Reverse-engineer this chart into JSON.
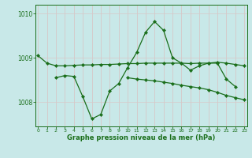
{
  "x": [
    0,
    1,
    2,
    3,
    4,
    5,
    6,
    7,
    8,
    9,
    10,
    11,
    12,
    13,
    14,
    15,
    16,
    17,
    18,
    19,
    20,
    21,
    22,
    23
  ],
  "line1": [
    1009.05,
    1008.88,
    1008.82,
    1008.82,
    1008.83,
    1008.84,
    1008.84,
    1008.85,
    1008.85,
    1008.86,
    1008.87,
    1008.87,
    1008.88,
    1008.88,
    1008.88,
    1008.88,
    1008.88,
    1008.87,
    1008.88,
    1008.88,
    1008.9,
    1008.88,
    1008.85,
    1008.82
  ],
  "line2": [
    null,
    null,
    1008.55,
    1008.6,
    1008.58,
    1008.12,
    1007.62,
    1007.72,
    1008.25,
    1008.42,
    1008.78,
    1009.12,
    1009.58,
    1009.82,
    1009.62,
    1009.0,
    1008.88,
    1008.72,
    1008.82,
    1008.88,
    1008.88,
    1008.52,
    1008.35,
    null
  ],
  "line3": [
    null,
    null,
    null,
    null,
    null,
    null,
    null,
    null,
    null,
    null,
    1008.55,
    1008.52,
    1008.5,
    1008.48,
    1008.45,
    1008.42,
    1008.38,
    1008.35,
    1008.32,
    1008.28,
    1008.22,
    1008.15,
    1008.1,
    1008.05
  ],
  "ylim": [
    1007.45,
    1010.2
  ],
  "xlim": [
    -0.3,
    23.3
  ],
  "yticks": [
    1008,
    1009,
    1010
  ],
  "xticks": [
    0,
    1,
    2,
    3,
    4,
    5,
    6,
    7,
    8,
    9,
    10,
    11,
    12,
    13,
    14,
    15,
    16,
    17,
    18,
    19,
    20,
    21,
    22,
    23
  ],
  "xlabel": "Graphe pression niveau de la mer (hPa)",
  "line_color": "#1a6e1a",
  "bg_color": "#c8e8e8",
  "grid_color_h": "#d8c8c8",
  "grid_color_v": "#d8c0c0",
  "marker": "D",
  "markersize": 2.2,
  "linewidth": 0.9
}
